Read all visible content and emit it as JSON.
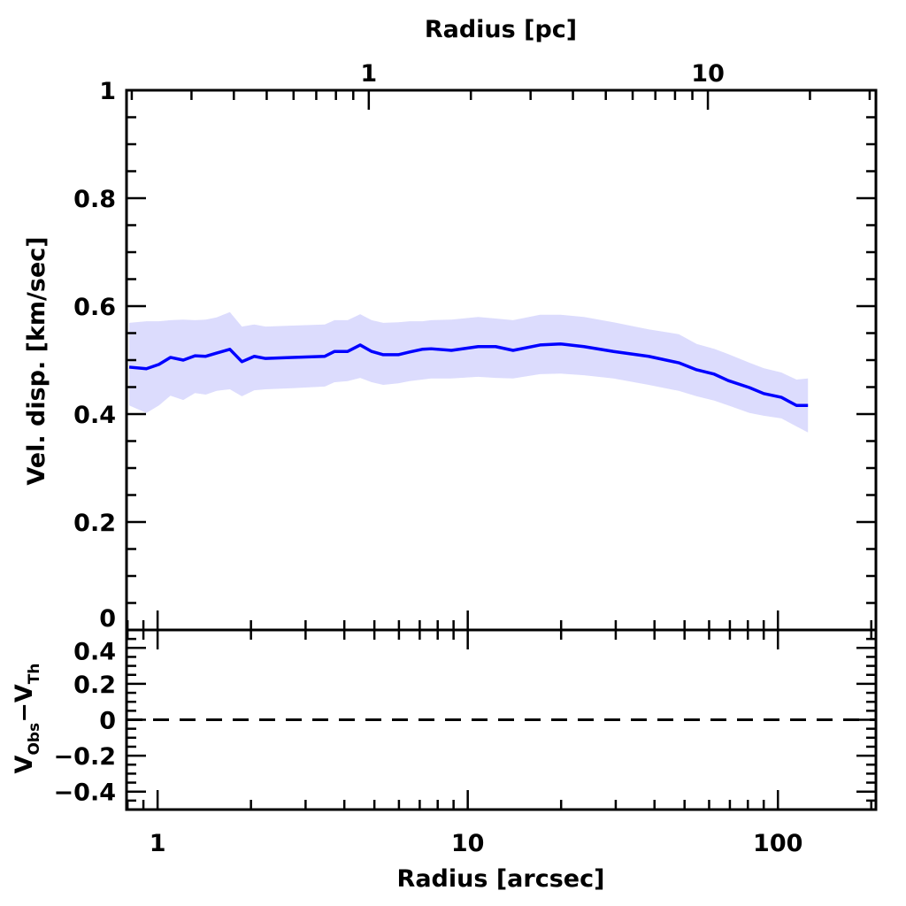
{
  "chart_data": [
    {
      "type": "area",
      "panel": "main",
      "xlabel": "Radius [arcsec]",
      "x2label": "Radius [pc]",
      "ylabel": "Vel. disp. [km/sec]",
      "xscale": "log",
      "xlim": [
        0.794,
        207
      ],
      "x2lim": [
        0.193,
        31.3
      ],
      "ylim": [
        0,
        1
      ],
      "xticks": [
        "1",
        "10",
        "100"
      ],
      "x2ticks": [
        "1",
        "10"
      ],
      "yticks": [
        "0",
        "0.2",
        "0.4",
        "0.6",
        "0.8",
        "1"
      ],
      "grid": false,
      "line_color": "#0000ff",
      "band_color": "#dcdcfd",
      "x": [
        0.81,
        0.92,
        1.01,
        1.1,
        1.21,
        1.32,
        1.43,
        1.55,
        1.71,
        1.87,
        2.05,
        2.23,
        2.72,
        3.46,
        3.72,
        4.1,
        4.5,
        4.9,
        5.34,
        5.97,
        6.5,
        7.13,
        7.62,
        8.86,
        10.8,
        12.3,
        14.0,
        17.1,
        19.9,
        23.7,
        29.5,
        38.3,
        47.9,
        54.7,
        62.3,
        69.2,
        81.0,
        90.0,
        102.6,
        114.8,
        125.0
      ],
      "y": [
        0.487,
        0.484,
        0.492,
        0.505,
        0.5,
        0.508,
        0.507,
        0.513,
        0.52,
        0.497,
        0.507,
        0.503,
        0.505,
        0.507,
        0.516,
        0.516,
        0.528,
        0.516,
        0.51,
        0.51,
        0.515,
        0.52,
        0.521,
        0.518,
        0.525,
        0.525,
        0.518,
        0.528,
        0.53,
        0.525,
        0.516,
        0.507,
        0.495,
        0.482,
        0.474,
        0.462,
        0.449,
        0.438,
        0.431,
        0.416,
        0.416
      ],
      "y_upper": [
        0.569,
        0.572,
        0.572,
        0.574,
        0.575,
        0.574,
        0.575,
        0.579,
        0.589,
        0.562,
        0.566,
        0.562,
        0.564,
        0.566,
        0.574,
        0.574,
        0.585,
        0.574,
        0.569,
        0.57,
        0.572,
        0.572,
        0.574,
        0.575,
        0.58,
        0.577,
        0.574,
        0.584,
        0.584,
        0.58,
        0.57,
        0.557,
        0.548,
        0.53,
        0.521,
        0.511,
        0.495,
        0.485,
        0.477,
        0.464,
        0.466
      ],
      "y_lower": [
        0.416,
        0.402,
        0.416,
        0.434,
        0.426,
        0.439,
        0.436,
        0.443,
        0.446,
        0.433,
        0.444,
        0.446,
        0.448,
        0.451,
        0.459,
        0.461,
        0.467,
        0.459,
        0.454,
        0.457,
        0.461,
        0.464,
        0.466,
        0.466,
        0.469,
        0.467,
        0.466,
        0.474,
        0.475,
        0.472,
        0.466,
        0.454,
        0.443,
        0.433,
        0.425,
        0.416,
        0.402,
        0.397,
        0.392,
        0.377,
        0.366
      ]
    },
    {
      "type": "line",
      "panel": "residual",
      "xlabel": "Radius [arcsec]",
      "ylabel_main": "V",
      "ylabel_sub1": "Obs",
      "ylabel_mid": "−V",
      "ylabel_sub2": "Th",
      "xscale": "log",
      "xlim": [
        0.794,
        207
      ],
      "ylim": [
        -0.5,
        0.5
      ],
      "yticks": [
        "0.4",
        "0.2",
        "0",
        "−0.2",
        "−0.4"
      ],
      "reference_line": 0,
      "reference_style": "dashed"
    }
  ]
}
